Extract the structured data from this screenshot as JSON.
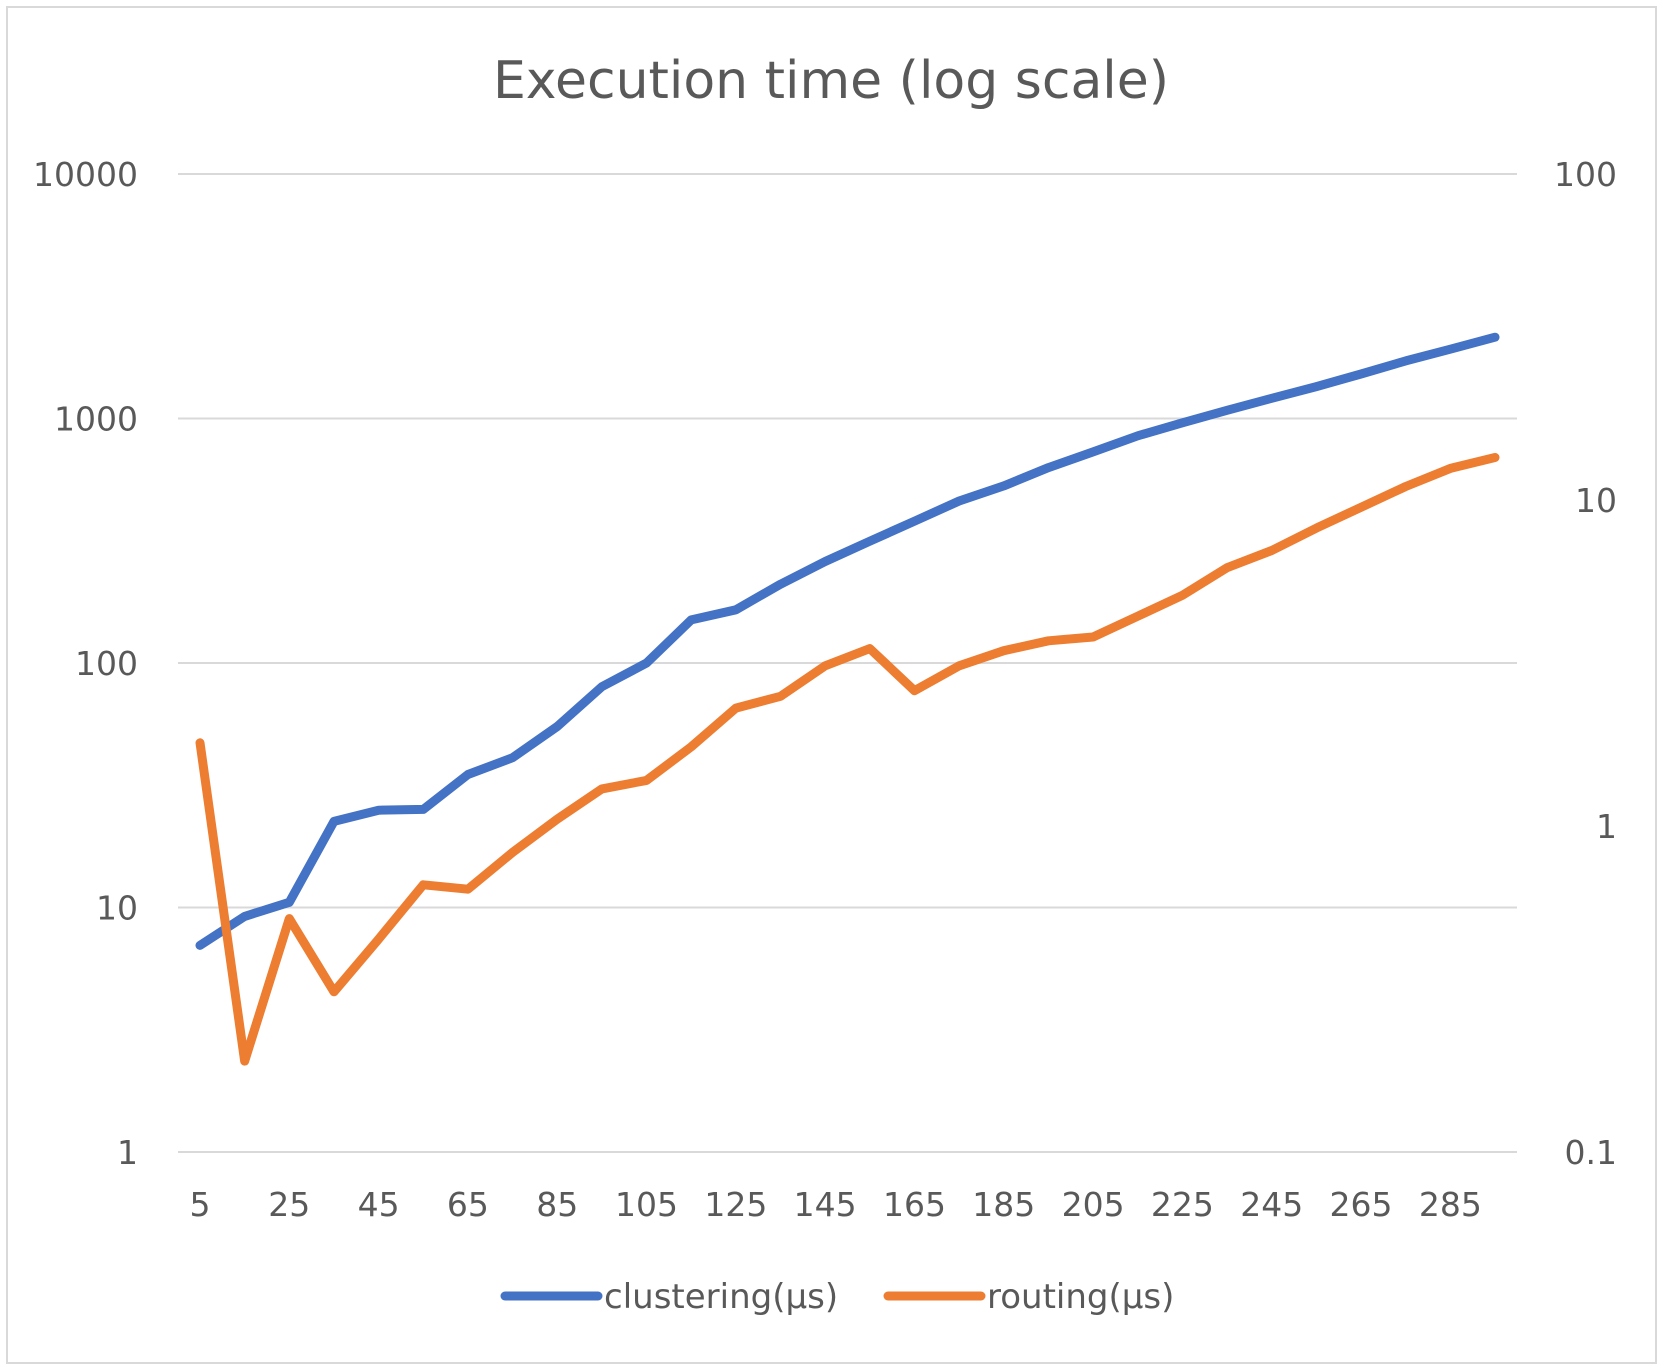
{
  "chart_data": {
    "type": "line",
    "title": "Execution time (log scale)",
    "x": [
      5,
      15,
      25,
      35,
      45,
      55,
      65,
      75,
      85,
      95,
      105,
      115,
      125,
      135,
      145,
      155,
      165,
      175,
      185,
      195,
      205,
      215,
      225,
      235,
      245,
      255,
      265,
      275,
      285,
      295
    ],
    "x_tick_labels": [
      "5",
      "25",
      "45",
      "65",
      "85",
      "105",
      "125",
      "145",
      "165",
      "185",
      "205",
      "225",
      "245",
      "265",
      "285"
    ],
    "y_left": {
      "scale": "log",
      "range": [
        1,
        10000
      ],
      "tick_labels": [
        "1",
        "10",
        "100",
        "1000",
        "10000"
      ]
    },
    "y_right": {
      "scale": "log",
      "range": [
        0.1,
        100
      ],
      "tick_labels": [
        "0.1",
        "1",
        "10",
        "100"
      ]
    },
    "grid": true,
    "legend_position": "bottom",
    "series": [
      {
        "name": "clustering(µs)",
        "axis": "left",
        "color": "#4472c4",
        "values": [
          7,
          9.2,
          10.5,
          22.5,
          25,
          25.2,
          35,
          41,
          55,
          80,
          100,
          150,
          165,
          210,
          260,
          315,
          380,
          460,
          530,
          630,
          730,
          850,
          960,
          1080,
          1210,
          1350,
          1520,
          1720,
          1920,
          2150
        ]
      },
      {
        "name": "routing(µs)",
        "axis": "right",
        "color": "#ed7d31",
        "values": [
          1.8,
          0.19,
          0.52,
          0.31,
          0.45,
          0.66,
          0.64,
          0.83,
          1.05,
          1.3,
          1.38,
          1.75,
          2.3,
          2.5,
          3.1,
          3.5,
          2.6,
          3.1,
          3.45,
          3.7,
          3.8,
          4.4,
          5.1,
          6.2,
          7,
          8.2,
          9.5,
          11,
          12.5,
          13.5
        ]
      }
    ]
  }
}
